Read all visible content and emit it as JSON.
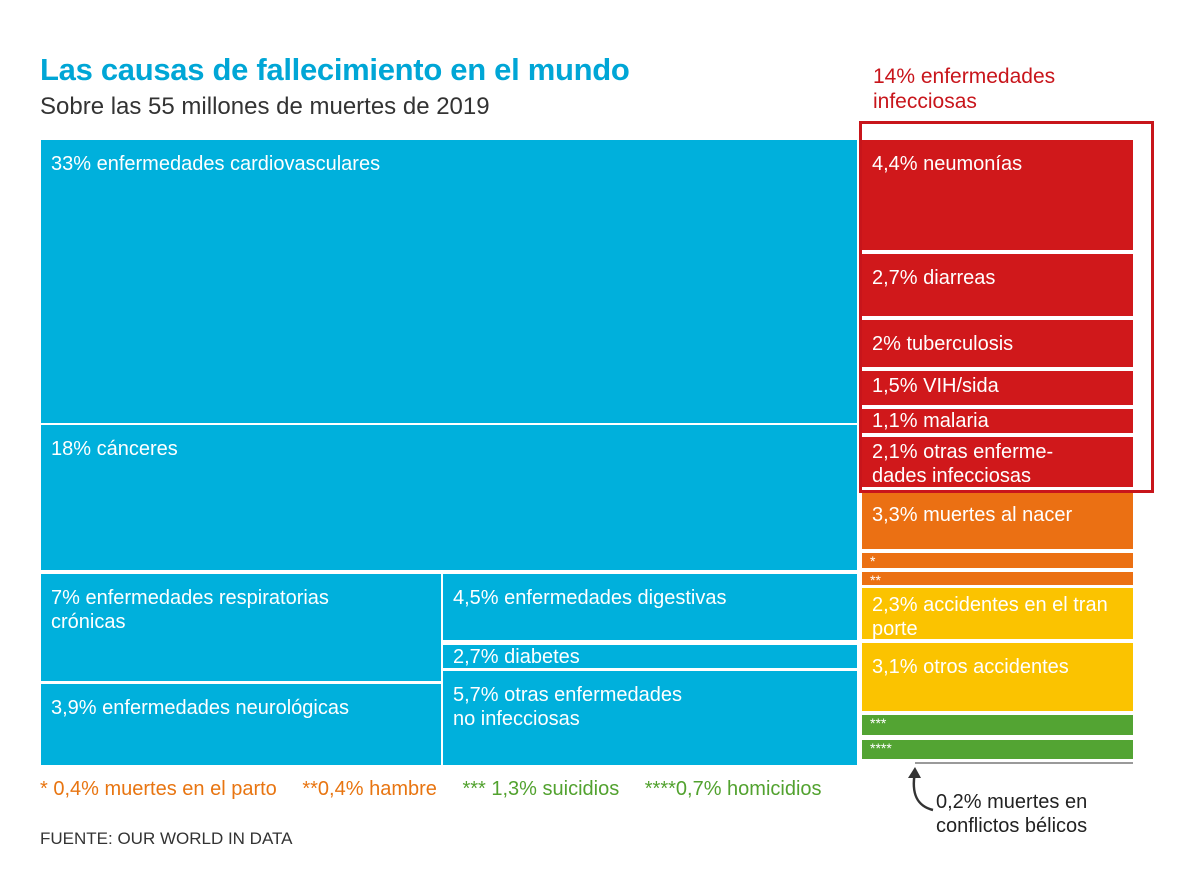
{
  "header": {
    "title": "Las causas de fallecimiento en el mundo",
    "subtitle": "Sobre las 55 millones de muertes de 2019"
  },
  "group_label": "14% enfermedades\ninfecciosas",
  "colors": {
    "blue": "#00b0dc",
    "red": "#d0181b",
    "orange": "#eb7013",
    "yellow": "#fbc300",
    "green": "#53a433",
    "group_outline": "#c8151b"
  },
  "chart_data": {
    "type": "treemap",
    "unit": "% de muertes",
    "items": [
      {
        "id": "cardio",
        "label": "33% enfermedades cardiovasculares",
        "value": 33,
        "color": "blue"
      },
      {
        "id": "cancer",
        "label": "18% cánceres",
        "value": 18,
        "color": "blue"
      },
      {
        "id": "resp",
        "label": "7% enfermedades respiratorias\ncrónicas",
        "value": 7,
        "color": "blue"
      },
      {
        "id": "neuro",
        "label": "3,9% enfermedades neurológicas",
        "value": 3.9,
        "color": "blue"
      },
      {
        "id": "digest",
        "label": "4,5% enfermedades digestivas",
        "value": 4.5,
        "color": "blue"
      },
      {
        "id": "diab",
        "label": "2,7% diabetes",
        "value": 2.7,
        "color": "blue"
      },
      {
        "id": "otras_ni",
        "label": "5,7% otras enfermedades\nno infecciosas",
        "value": 5.7,
        "color": "blue"
      },
      {
        "id": "neumo",
        "label": "4,4% neumonías",
        "value": 4.4,
        "color": "red"
      },
      {
        "id": "diarr",
        "label": "2,7% diarreas",
        "value": 2.7,
        "color": "red"
      },
      {
        "id": "tuber",
        "label": "2% tuberculosis",
        "value": 2,
        "color": "red"
      },
      {
        "id": "vih",
        "label": "1,5% VIH/sida",
        "value": 1.5,
        "color": "red"
      },
      {
        "id": "malaria",
        "label": "1,1% malaria",
        "value": 1.1,
        "color": "red"
      },
      {
        "id": "otras_inf",
        "label": "2,1% otras enferme-\ndades infecciosas",
        "value": 2.1,
        "color": "red"
      },
      {
        "id": "nacer",
        "label": "3,3% muertes al nacer",
        "value": 3.3,
        "color": "orange"
      },
      {
        "id": "parto",
        "label": "*",
        "value": 0.4,
        "color": "orange"
      },
      {
        "id": "hambre",
        "label": "**",
        "value": 0.4,
        "color": "orange"
      },
      {
        "id": "transp",
        "label": "2,3% accidentes en el tran\nporte",
        "value": 2.3,
        "color": "yellow"
      },
      {
        "id": "otros_acc",
        "label": "3,1% otros accidentes",
        "value": 3.1,
        "color": "yellow"
      },
      {
        "id": "suic",
        "label": "***",
        "value": 1.3,
        "color": "green"
      },
      {
        "id": "homic",
        "label": "****",
        "value": 0.7,
        "color": "green"
      },
      {
        "id": "guerra",
        "label": "",
        "value": 0.2,
        "color": "gray"
      }
    ]
  },
  "footnotes": [
    {
      "text": "* 0,4% muertes en el parto",
      "color": "orange"
    },
    {
      "text": "**0,4% hambre",
      "color": "orange"
    },
    {
      "text": "*** 1,3% suicidios",
      "color": "green"
    },
    {
      "text": "****0,7% homicidios",
      "color": "green"
    }
  ],
  "war_note": "0,2% muertes en\nconflictos bélicos",
  "source": "FUENTE: OUR WORLD IN DATA"
}
